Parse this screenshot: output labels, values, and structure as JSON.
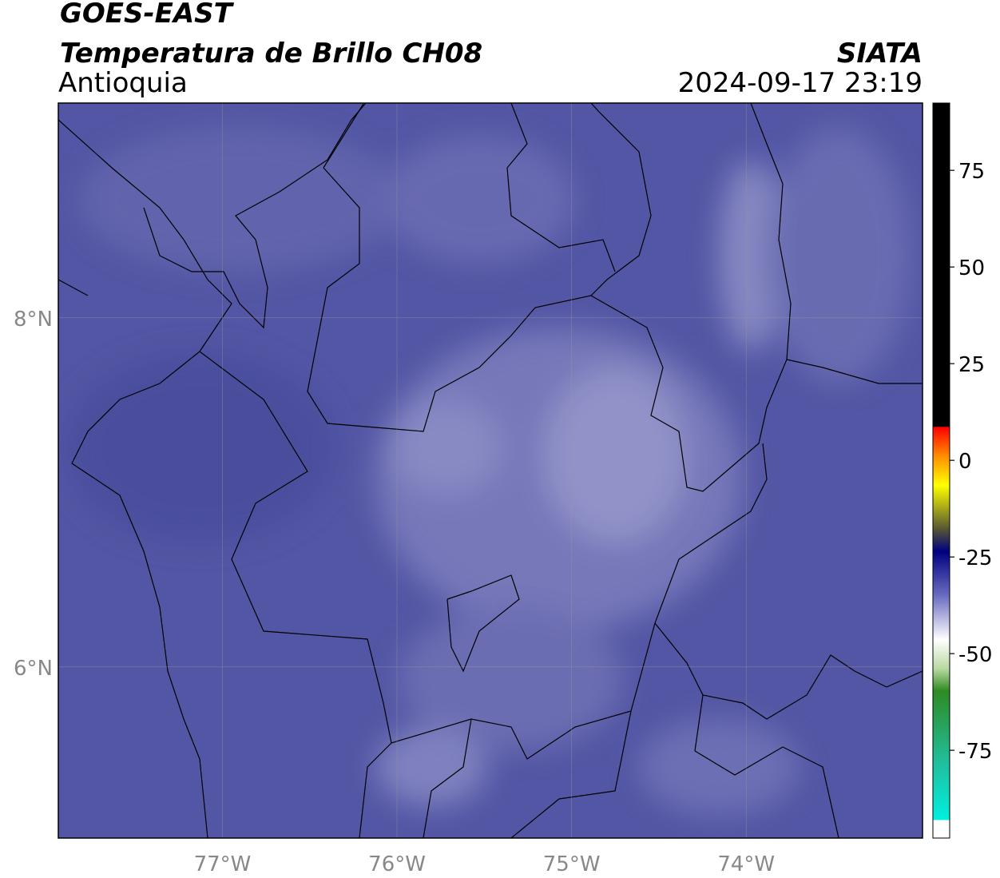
{
  "map": {
    "title": "GOES-EAST",
    "subtitle": "Temperatura de Brillo CH08",
    "region": "Antioquia",
    "source": "SIATA",
    "timestamp": "2024-09-17 23:19",
    "xlim": [
      -77.94,
      -72.99
    ],
    "ylim": [
      5.02,
      9.23
    ],
    "xticks": [
      {
        "value": -77,
        "label": "77°W"
      },
      {
        "value": -76,
        "label": "76°W"
      },
      {
        "value": -75,
        "label": "75°W"
      },
      {
        "value": -74,
        "label": "74°W"
      }
    ],
    "yticks": [
      {
        "value": 8,
        "label": "8°N"
      },
      {
        "value": 6,
        "label": "6°N"
      }
    ],
    "colorbar": {
      "lim": [
        -97.7,
        92.4
      ],
      "ticks": [
        75,
        50,
        25,
        0,
        -25,
        -50,
        -75
      ]
    }
  }
}
